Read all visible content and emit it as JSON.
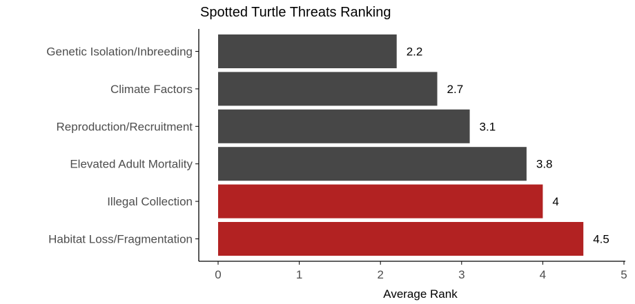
{
  "chart_data": {
    "type": "bar",
    "orientation": "horizontal",
    "title": "Spotted Turtle Threats Ranking",
    "xlabel": "Average Rank",
    "ylabel": "",
    "xlim": [
      0,
      5
    ],
    "xticks": [
      0,
      1,
      2,
      3,
      4,
      5
    ],
    "grid": false,
    "legend": "none",
    "categories": [
      "Genetic Isolation/Inbreeding",
      "Climate Factors",
      "Reproduction/Recruitment",
      "Elevated Adult Mortality",
      "Illegal Collection",
      "Habitat Loss/Fragmentation"
    ],
    "values": [
      2.2,
      2.7,
      3.1,
      3.8,
      4,
      4.5
    ],
    "value_labels": [
      "2.2",
      "2.7",
      "3.1",
      "3.8",
      "4",
      "4.5"
    ],
    "bar_colors": [
      "#474747",
      "#474747",
      "#474747",
      "#474747",
      "#b22222",
      "#b22222"
    ]
  }
}
